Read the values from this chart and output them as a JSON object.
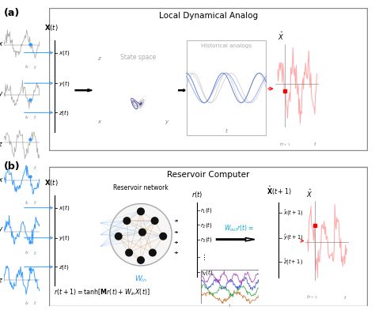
{
  "title_a": "Local Dynamical Analog",
  "title_b": "Reservoir Computer",
  "label_a": "(a)",
  "label_b": "(b)",
  "box_edge": "#888888",
  "blue_color": "#3399ff",
  "red_color": "#ff4444",
  "pink_color": "#ffaaaa",
  "gray_color": "#aaaaaa",
  "dark_gray": "#555555",
  "lorenz_color": "#bbbbbb",
  "lorenz_highlight": "#4444aa",
  "node_color": "#111111",
  "orange_conn": "#cc8844",
  "blue_fan": "#66aaff",
  "cyan_wout": "#00aacc"
}
